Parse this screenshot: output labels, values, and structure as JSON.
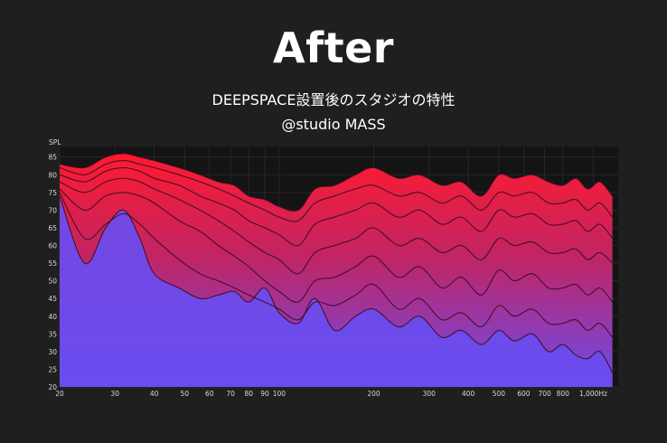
{
  "header": {
    "title": "After",
    "subtitle": "DEEPSPACE設置後のスタジオの特性",
    "credit": "@studio MASS"
  },
  "colors": {
    "background": "#1f1f1f",
    "plot_background": "#141414",
    "top_band": "#ff1a2e",
    "bottom_band": "#6a4cf0",
    "curve_line": "#3a0d1e"
  },
  "chart_data": {
    "type": "area",
    "ylabel": "SPL",
    "xlabel": "",
    "x_scale": "log",
    "xlim": [
      20,
      1200
    ],
    "ylim": [
      20,
      88
    ],
    "grid": true,
    "x_ticks": [
      {
        "value": 20,
        "label": "20"
      },
      {
        "value": 30,
        "label": "30"
      },
      {
        "value": 40,
        "label": "40"
      },
      {
        "value": 50,
        "label": "50"
      },
      {
        "value": 60,
        "label": "60"
      },
      {
        "value": 70,
        "label": "70"
      },
      {
        "value": 80,
        "label": "80"
      },
      {
        "value": 90,
        "label": "90"
      },
      {
        "value": 100,
        "label": "100"
      },
      {
        "value": 200,
        "label": "200"
      },
      {
        "value": 300,
        "label": "300"
      },
      {
        "value": 400,
        "label": "400"
      },
      {
        "value": 500,
        "label": "500"
      },
      {
        "value": 600,
        "label": "600"
      },
      {
        "value": 700,
        "label": "700"
      },
      {
        "value": 800,
        "label": "800"
      },
      {
        "value": 1000,
        "label": "1,000Hz"
      }
    ],
    "y_ticks": [
      20,
      25,
      30,
      35,
      40,
      45,
      50,
      55,
      60,
      65,
      70,
      75,
      80,
      85
    ],
    "x": [
      20,
      24,
      28,
      32,
      36,
      40,
      48,
      56,
      64,
      72,
      80,
      90,
      100,
      115,
      130,
      150,
      175,
      200,
      240,
      280,
      330,
      380,
      440,
      500,
      560,
      640,
      720,
      800,
      880,
      960,
      1050,
      1150
    ],
    "series": [
      {
        "values": [
          83,
          82,
          85,
          86,
          85,
          84,
          82,
          80,
          78,
          77,
          74,
          73,
          71,
          70,
          76,
          77,
          80,
          82,
          79,
          80,
          77,
          78,
          74,
          80,
          79,
          80,
          78,
          77,
          79,
          76,
          78,
          74
        ]
      },
      {
        "values": [
          82,
          80,
          83,
          84,
          83,
          82,
          80,
          78,
          76,
          74,
          72,
          70,
          68,
          67,
          72,
          74,
          76,
          77,
          74,
          75,
          72,
          74,
          70,
          75,
          74,
          75,
          72,
          72,
          73,
          70,
          72,
          68
        ]
      },
      {
        "values": [
          80,
          78,
          81,
          82,
          81,
          79,
          77,
          74,
          72,
          70,
          67,
          65,
          63,
          60,
          66,
          68,
          70,
          72,
          68,
          70,
          66,
          68,
          64,
          70,
          68,
          69,
          66,
          66,
          67,
          64,
          66,
          62
        ]
      },
      {
        "values": [
          78,
          75,
          78,
          79,
          78,
          76,
          73,
          70,
          67,
          64,
          61,
          58,
          56,
          52,
          58,
          60,
          62,
          65,
          60,
          62,
          58,
          60,
          56,
          62,
          60,
          61,
          58,
          58,
          59,
          56,
          58,
          55
        ]
      },
      {
        "values": [
          76,
          70,
          74,
          75,
          74,
          72,
          67,
          64,
          60,
          57,
          54,
          50,
          47,
          44,
          50,
          51,
          54,
          57,
          51,
          54,
          48,
          51,
          46,
          53,
          50,
          52,
          48,
          48,
          49,
          46,
          48,
          44
        ]
      },
      {
        "values": [
          75,
          62,
          66,
          69,
          66,
          62,
          56,
          52,
          50,
          48,
          46,
          44,
          42,
          39,
          44,
          43,
          46,
          49,
          42,
          45,
          39,
          41,
          37,
          43,
          40,
          42,
          38,
          38,
          39,
          36,
          38,
          34
        ]
      },
      {
        "values": [
          74,
          55,
          65,
          70,
          62,
          52,
          48,
          45,
          46,
          47,
          44,
          48,
          41,
          38,
          45,
          36,
          40,
          42,
          37,
          40,
          34,
          36,
          32,
          36,
          33,
          35,
          30,
          32,
          29,
          28,
          30,
          24
        ]
      }
    ]
  }
}
